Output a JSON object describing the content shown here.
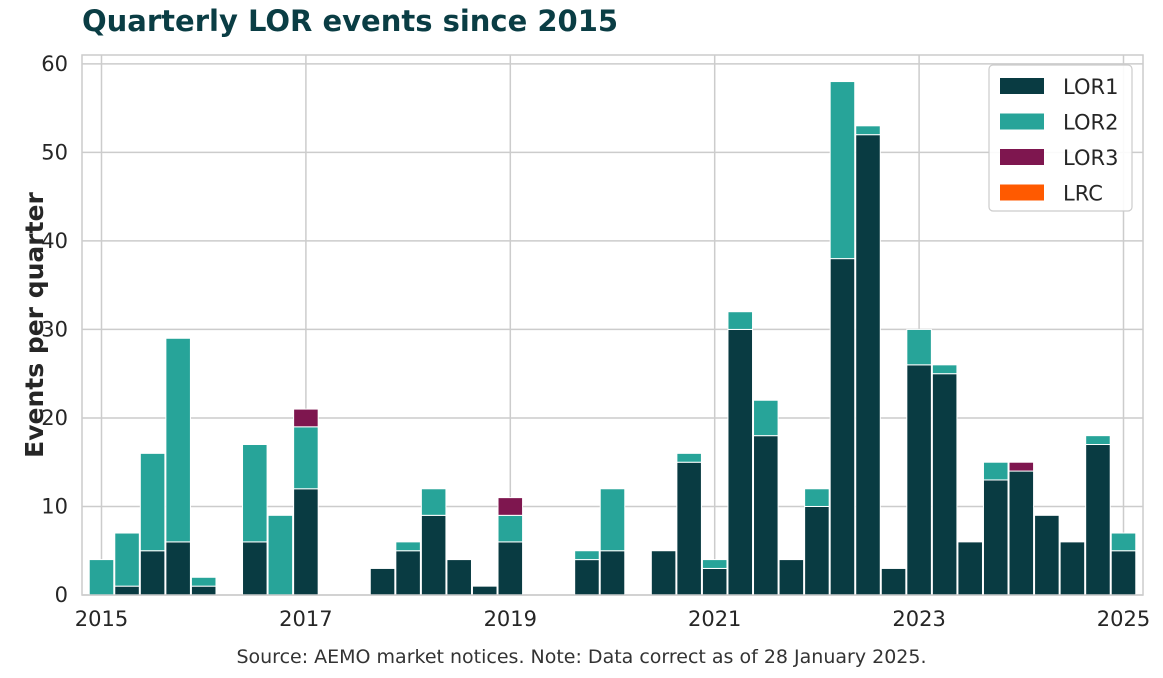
{
  "chart_data": {
    "type": "bar",
    "stacked": true,
    "title": "Quarterly LOR events since 2015",
    "ylabel": "Events per quarter",
    "xlabel": "",
    "source": "Source: AEMO market notices. Note: Data correct as of 28 January 2025.",
    "ylim": [
      0,
      61
    ],
    "yticks": [
      0,
      10,
      20,
      30,
      40,
      50,
      60
    ],
    "xlim": [
      2015.0,
      2025.1
    ],
    "xticks": [
      2015,
      2017,
      2019,
      2021,
      2023,
      2025
    ],
    "xtick_labels": [
      "2015",
      "2017",
      "2019",
      "2021",
      "2023",
      "2025"
    ],
    "grid": true,
    "legend_position": "top-right",
    "bar_width_years": 0.25,
    "x": [
      2015.0,
      2015.25,
      2015.5,
      2015.75,
      2016.0,
      2016.25,
      2016.5,
      2016.75,
      2017.0,
      2017.25,
      2017.5,
      2017.75,
      2018.0,
      2018.25,
      2018.5,
      2018.75,
      2019.0,
      2019.25,
      2019.5,
      2019.75,
      2020.0,
      2020.25,
      2020.5,
      2020.75,
      2021.0,
      2021.25,
      2021.5,
      2021.75,
      2022.0,
      2022.25,
      2022.5,
      2022.75,
      2023.0,
      2023.25,
      2023.5,
      2023.75,
      2024.0,
      2024.25,
      2024.5,
      2024.75,
      2025.0
    ],
    "series": [
      {
        "name": "LOR1",
        "color": "#093b42",
        "values": [
          0,
          1,
          5,
          6,
          1,
          0,
          6,
          0,
          12,
          0,
          0,
          3,
          5,
          9,
          4,
          1,
          6,
          0,
          0,
          4,
          5,
          0,
          5,
          15,
          3,
          30,
          18,
          4,
          10,
          38,
          52,
          3,
          26,
          25,
          6,
          13,
          14,
          9,
          6,
          17,
          5
        ]
      },
      {
        "name": "LOR2",
        "color": "#27a499",
        "values": [
          4,
          6,
          11,
          23,
          1,
          0,
          11,
          9,
          7,
          0,
          0,
          0,
          1,
          3,
          0,
          0,
          3,
          0,
          0,
          1,
          7,
          0,
          0,
          1,
          1,
          2,
          4,
          0,
          2,
          20,
          1,
          0,
          4,
          1,
          0,
          2,
          0,
          0,
          0,
          1,
          2
        ]
      },
      {
        "name": "LOR3",
        "color": "#7e164f",
        "values": [
          0,
          0,
          0,
          0,
          0,
          0,
          0,
          0,
          2,
          0,
          0,
          0,
          0,
          0,
          0,
          0,
          2,
          0,
          0,
          0,
          0,
          0,
          0,
          0,
          0,
          0,
          0,
          0,
          0,
          0,
          0,
          0,
          0,
          0,
          0,
          0,
          1,
          0,
          0,
          0,
          0
        ]
      },
      {
        "name": "LRC",
        "color": "#ff5a00",
        "values": [
          0,
          0,
          0,
          0,
          0,
          0,
          0,
          0,
          0,
          0,
          0,
          0,
          0,
          0,
          0,
          0,
          0,
          0,
          0,
          0,
          0,
          0,
          0,
          0,
          0,
          0,
          0,
          0,
          0,
          0,
          0,
          0,
          0,
          0,
          0,
          0,
          0,
          0,
          0,
          0,
          0
        ]
      }
    ]
  }
}
